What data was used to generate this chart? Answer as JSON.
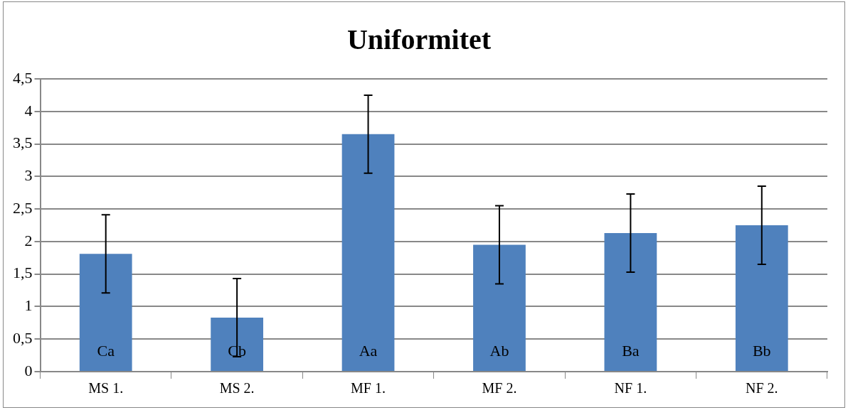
{
  "chart_data": {
    "type": "bar",
    "title": "Uniformitet",
    "categories": [
      "MS 1.",
      "MS 2.",
      "MF 1.",
      "MF 2.",
      "NF 1.",
      "NF 2."
    ],
    "values": [
      1.81,
      0.83,
      3.65,
      1.95,
      2.13,
      2.25
    ],
    "errors": [
      0.6,
      0.6,
      0.6,
      0.6,
      0.6,
      0.6
    ],
    "color": "#4f81bd",
    "ylim": [
      0,
      4.5
    ],
    "yticks": [
      {
        "value": 0,
        "label": "0"
      },
      {
        "value": 0.5,
        "label": "0,5"
      },
      {
        "value": 1,
        "label": "1"
      },
      {
        "value": 1.5,
        "label": "1,5"
      },
      {
        "value": 2,
        "label": "2"
      },
      {
        "value": 2.5,
        "label": "2,5"
      },
      {
        "value": 3,
        "label": "3"
      },
      {
        "value": 3.5,
        "label": "3,5"
      },
      {
        "value": 4,
        "label": "4"
      },
      {
        "value": 4.5,
        "label": "4,5"
      }
    ],
    "grid": "y",
    "legend": false,
    "annotations": [
      "Ca",
      "Cb",
      "Aa",
      "Ab",
      "Ba",
      "Bb"
    ]
  }
}
